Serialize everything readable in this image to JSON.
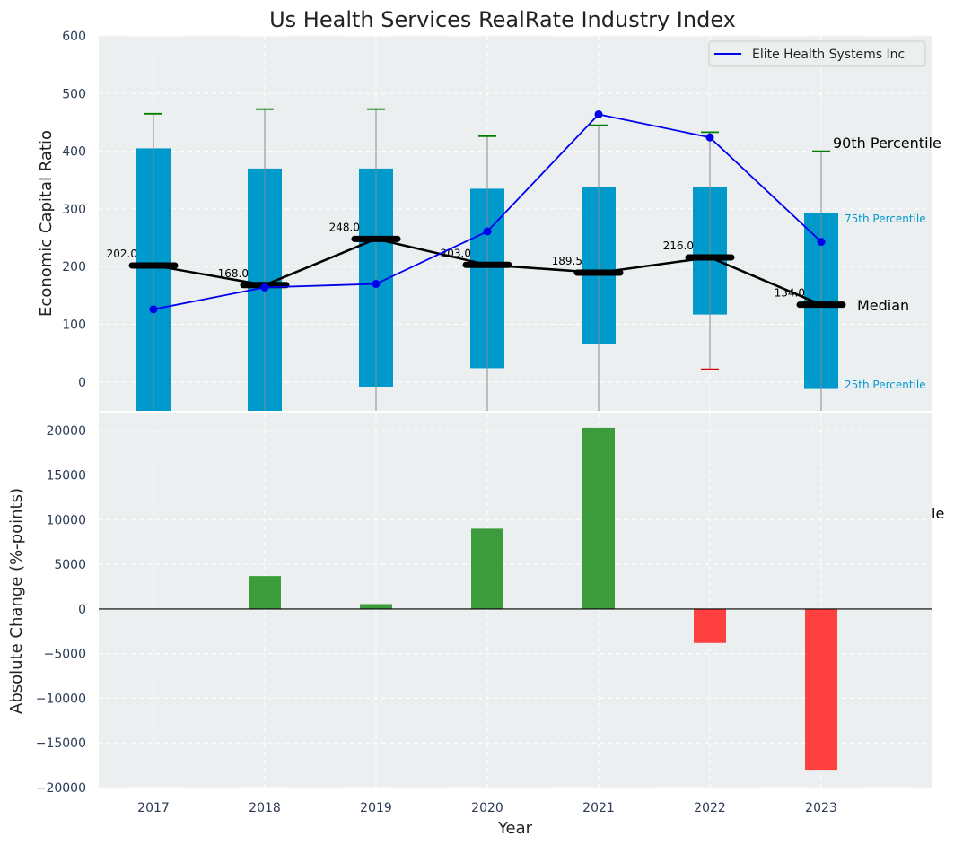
{
  "title": "Us Health Services RealRate Industry Index",
  "colors": {
    "panel_bg": "#eceff0",
    "box": "#0099cc",
    "median": "#000000",
    "company_line": "#0000ee",
    "whisker_cap_high": "#008000",
    "whisker_cap_low": "#dd0000",
    "bar_positive": "#3c9c3c",
    "bar_negative": "#ff4040",
    "percentile_label": "#0099cc"
  },
  "chart_data": [
    {
      "type": "box",
      "ylabel": "Economic Capital Ratio",
      "ylim": [
        -50,
        600
      ],
      "yticks": [
        0,
        100,
        200,
        300,
        400,
        500,
        600
      ],
      "categories": [
        "2017",
        "2018",
        "2019",
        "2020",
        "2021",
        "2022",
        "2023"
      ],
      "boxes": [
        {
          "year": "2017",
          "q1": -50,
          "median": 202.0,
          "q3": 405,
          "whisker_high": 465,
          "whisker_low": null,
          "median_label": "202.0"
        },
        {
          "year": "2018",
          "q1": -50,
          "median": 168.0,
          "q3": 370,
          "whisker_high": 473,
          "whisker_low": null,
          "median_label": "168.0"
        },
        {
          "year": "2019",
          "q1": -8,
          "median": 248.0,
          "q3": 370,
          "whisker_high": 473,
          "whisker_low": null,
          "median_label": "248.0"
        },
        {
          "year": "2020",
          "q1": 24,
          "median": 203.0,
          "q3": 335,
          "whisker_high": 426,
          "whisker_low": null,
          "median_label": "203.0"
        },
        {
          "year": "2021",
          "q1": 66,
          "median": 189.5,
          "q3": 338,
          "whisker_high": 445,
          "whisker_low": null,
          "median_label": "189.5"
        },
        {
          "year": "2022",
          "q1": 117,
          "median": 216.0,
          "q3": 338,
          "whisker_high": 433,
          "whisker_low": 22,
          "median_label": "216.0"
        },
        {
          "year": "2023",
          "q1": -12,
          "median": 134.0,
          "q3": 293,
          "whisker_high": 400,
          "whisker_low": null,
          "median_label": "134.0"
        }
      ],
      "series": [
        {
          "name": "Elite Health Systems Inc",
          "values": [
            126,
            164,
            170,
            261,
            464,
            424,
            243
          ]
        }
      ],
      "legend": "top-right",
      "annotations": {
        "p90": "90th Percentile",
        "p75": "75th Percentile",
        "median": "Median",
        "p25": "25th Percentile"
      },
      "grid": true
    },
    {
      "type": "bar",
      "xlabel": "Year",
      "ylabel": "Absolute Change (%-points)",
      "ylim": [
        -20000,
        22000
      ],
      "yticks": [
        -20000,
        -15000,
        -10000,
        -5000,
        0,
        5000,
        10000,
        15000,
        20000
      ],
      "categories": [
        "2017",
        "2018",
        "2019",
        "2020",
        "2021",
        "2022",
        "2023"
      ],
      "values": [
        0,
        3700,
        550,
        9000,
        20300,
        -3800,
        -18000
      ],
      "edge_text": "le",
      "grid": true
    }
  ]
}
